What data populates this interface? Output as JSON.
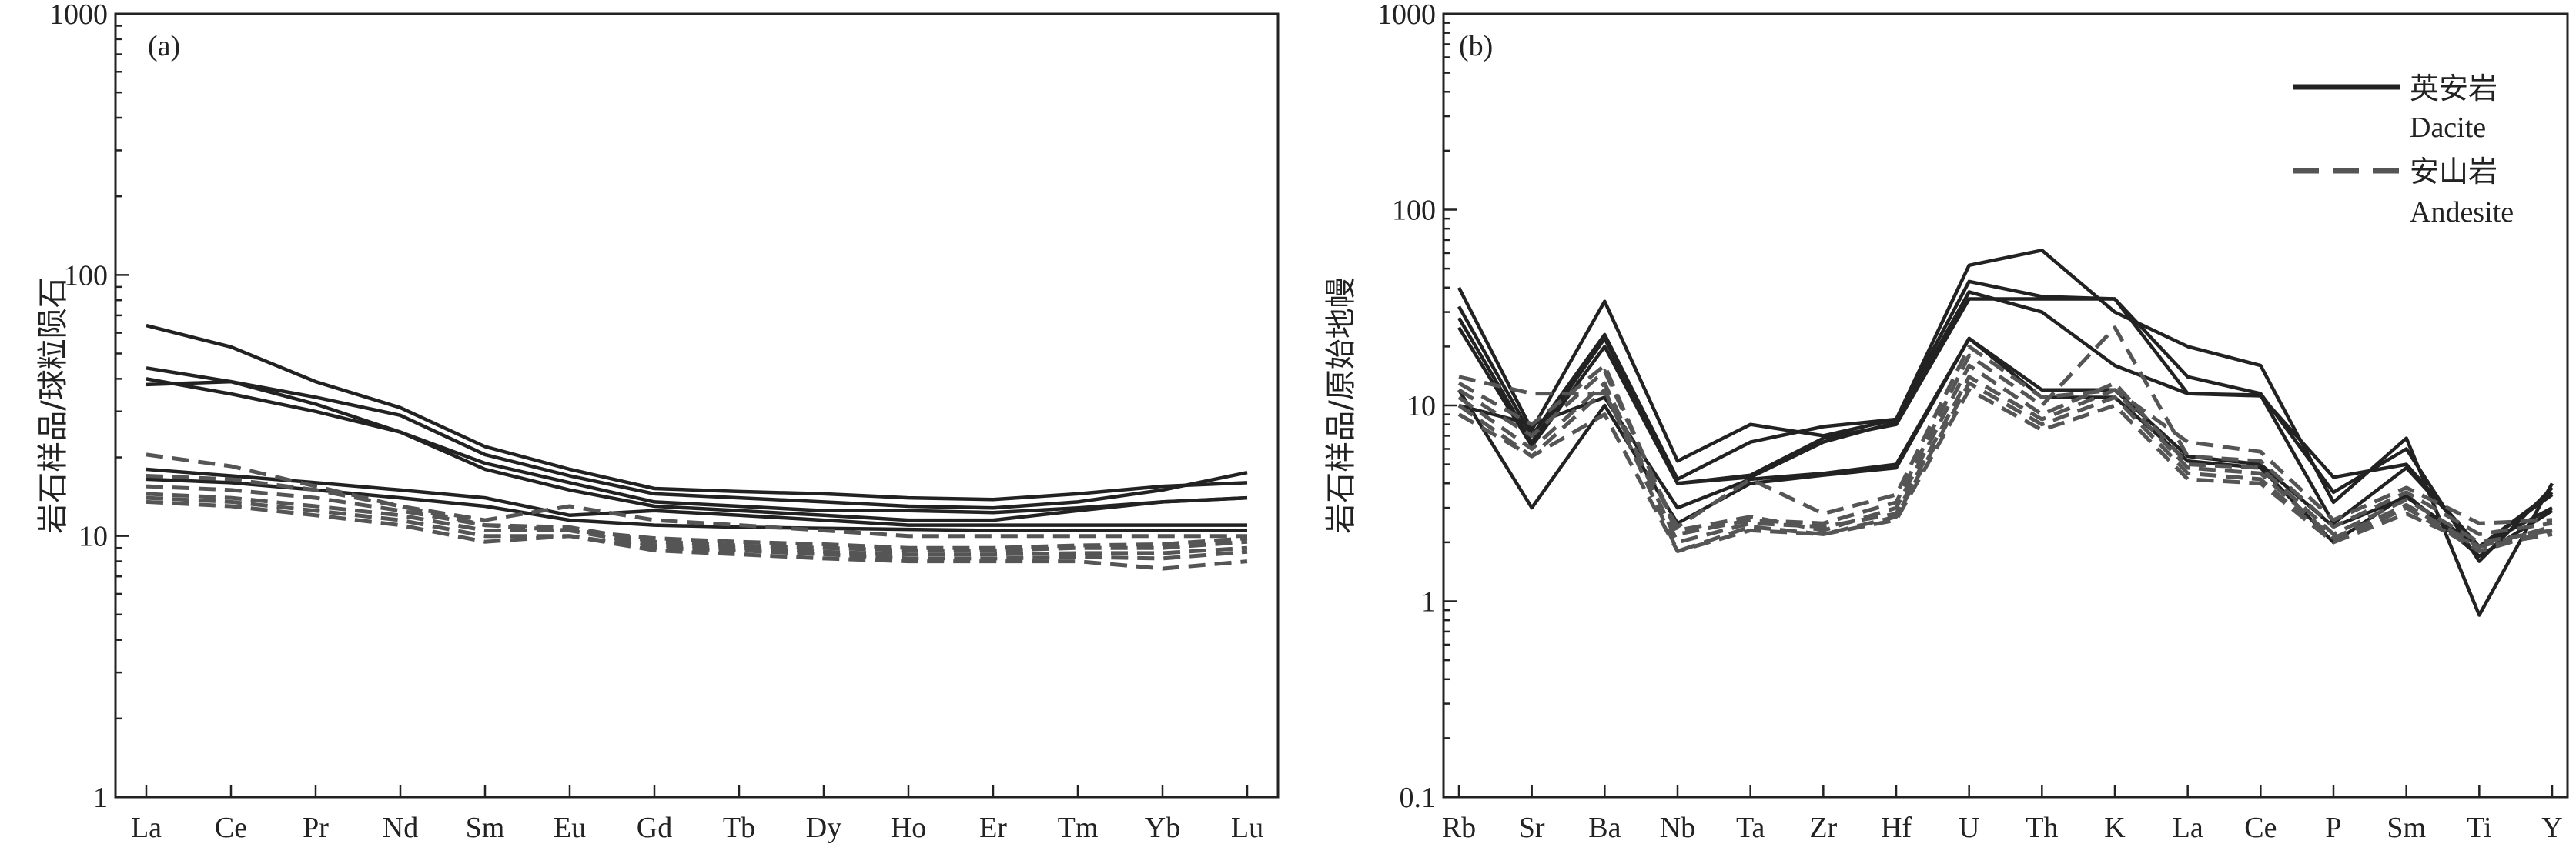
{
  "colors": {
    "dacite": "#222222",
    "andesite": "#555555"
  },
  "chart_data": [
    {
      "type": "line",
      "panel_label": "(a)",
      "ylabel": "岩石样品/球粒陨石",
      "y_scale": "log",
      "ylim": [
        1,
        1000
      ],
      "y_ticks": [
        "1",
        "10",
        "100",
        "1000"
      ],
      "categories": [
        "La",
        "Ce",
        "Pr",
        "Nd",
        "Sm",
        "Eu",
        "Gd",
        "Tb",
        "Dy",
        "Ho",
        "Er",
        "Tm",
        "Yb",
        "Lu"
      ],
      "series": [
        {
          "group": "dacite",
          "values": [
            64,
            53,
            39,
            31,
            22,
            18,
            15.2,
            14.8,
            14.5,
            14,
            13.8,
            14.5,
            15.5,
            16
          ]
        },
        {
          "group": "dacite",
          "values": [
            44,
            39,
            34,
            29,
            20.5,
            17,
            14.5,
            14,
            13.5,
            13,
            12.8,
            13.5,
            15,
            17.5
          ]
        },
        {
          "group": "dacite",
          "values": [
            40,
            35,
            30,
            25,
            19,
            16,
            13.5,
            13,
            12.5,
            12.5,
            12.3,
            12.8,
            13.5,
            14
          ]
        },
        {
          "group": "dacite",
          "values": [
            38,
            39,
            32,
            25,
            18,
            15,
            13,
            12.5,
            12,
            11.5,
            11.5,
            12.5,
            13.5,
            14
          ]
        },
        {
          "group": "dacite",
          "values": [
            18,
            17,
            16,
            15,
            14,
            12,
            12.5,
            12,
            11.5,
            11,
            11,
            11,
            11,
            11
          ]
        },
        {
          "group": "dacite",
          "values": [
            16.5,
            16,
            15,
            14,
            13,
            11.5,
            11,
            10.8,
            10.7,
            10.6,
            10.5,
            10.5,
            10.5,
            10.5
          ]
        },
        {
          "group": "andesite",
          "values": [
            20.5,
            18.5,
            15.5,
            13,
            11.5,
            13,
            11.5,
            11,
            10.5,
            10,
            10,
            10,
            10,
            10
          ]
        },
        {
          "group": "andesite",
          "values": [
            17,
            16.5,
            15,
            13,
            11,
            10.5,
            9.8,
            9.5,
            9.3,
            9,
            9,
            9.2,
            9.3,
            9.8
          ]
        },
        {
          "group": "andesite",
          "values": [
            15.5,
            15,
            14,
            12.5,
            11,
            10.8,
            9.5,
            9.2,
            9,
            8.8,
            8.8,
            9,
            9,
            9.5
          ]
        },
        {
          "group": "andesite",
          "values": [
            14.5,
            14,
            13,
            12,
            10.5,
            10.5,
            9.2,
            9,
            8.7,
            8.5,
            8.5,
            8.6,
            8.6,
            9
          ]
        },
        {
          "group": "andesite",
          "values": [
            14,
            13.5,
            12.5,
            11.5,
            10,
            10,
            9,
            8.8,
            8.5,
            8.2,
            8.2,
            8.3,
            8.2,
            8.7
          ]
        },
        {
          "group": "andesite",
          "values": [
            13.5,
            13,
            12,
            11,
            9.5,
            10,
            8.8,
            8.5,
            8.2,
            8,
            8,
            8,
            7.5,
            8
          ]
        }
      ]
    },
    {
      "type": "line",
      "panel_label": "(b)",
      "ylabel": "岩石样品/原始地幔",
      "y_scale": "log",
      "ylim": [
        0.1,
        1000
      ],
      "y_ticks": [
        "0.1",
        "1",
        "10",
        "100",
        "1000"
      ],
      "categories": [
        "Rb",
        "Sr",
        "Ba",
        "Nb",
        "Ta",
        "Zr",
        "Hf",
        "U",
        "Th",
        "K",
        "La",
        "Ce",
        "P",
        "Sm",
        "Ti",
        "Y"
      ],
      "legend": [
        {
          "group": "dacite",
          "label_cn": "英安岩",
          "label_en": "Dacite"
        },
        {
          "group": "andesite",
          "label_cn": "安山岩",
          "label_en": "Andesite"
        }
      ],
      "series": [
        {
          "group": "dacite",
          "values": [
            40,
            7.5,
            34,
            5.2,
            8,
            7,
            8.5,
            52,
            62,
            30,
            20,
            16,
            3.2,
            6.8,
            0.85,
            4
          ]
        },
        {
          "group": "dacite",
          "values": [
            32,
            7,
            23,
            4.2,
            6.5,
            7.8,
            8.5,
            43,
            36,
            35,
            14,
            11.5,
            3.6,
            6,
            1.6,
            3.8
          ]
        },
        {
          "group": "dacite",
          "values": [
            28,
            6.5,
            22,
            4,
            4.3,
            6.5,
            8.2,
            38,
            30,
            16,
            11.5,
            11.2,
            4.3,
            5,
            1.9,
            3.6
          ]
        },
        {
          "group": "dacite",
          "values": [
            25,
            6.2,
            20,
            4,
            4.4,
            6.8,
            8,
            35,
            35,
            35,
            11.5,
            11.3,
            2.5,
            4.8,
            1.9,
            3.5
          ]
        },
        {
          "group": "dacite",
          "values": [
            12,
            3,
            10,
            2.5,
            4,
            4.4,
            4.8,
            22,
            12,
            12,
            5.5,
            5,
            2.4,
            3.4,
            1.9,
            3
          ]
        },
        {
          "group": "dacite",
          "values": [
            10,
            8,
            11,
            3,
            4.2,
            4.5,
            5,
            22,
            11,
            11,
            5.2,
            4.8,
            2,
            3.5,
            1.7,
            2.9
          ]
        },
        {
          "group": "andesite",
          "values": [
            14,
            11.5,
            11.5,
            2.4,
            4.2,
            2.8,
            3.5,
            20,
            11,
            12,
            6.5,
            5.8,
            2.6,
            3.8,
            2.5,
            2.6
          ]
        },
        {
          "group": "andesite",
          "values": [
            13,
            8,
            16,
            2.2,
            2.6,
            2.5,
            3.2,
            18,
            10,
            25,
            5.5,
            5.2,
            2.4,
            3.6,
            2.2,
            2.5
          ]
        },
        {
          "group": "andesite",
          "values": [
            12,
            7,
            15,
            2.3,
            2.7,
            2.3,
            3,
            16,
            9,
            13,
            5,
            4.8,
            2.2,
            3.3,
            2,
            2.3
          ]
        },
        {
          "group": "andesite",
          "values": [
            11,
            6,
            13,
            2,
            2.5,
            2.4,
            2.8,
            14,
            8.5,
            12,
            4.8,
            4.5,
            2.1,
            3.1,
            1.9,
            2.2
          ]
        },
        {
          "group": "andesite",
          "values": [
            10,
            5.5,
            12,
            1.8,
            2.4,
            2.2,
            2.7,
            13,
            8,
            11,
            4.5,
            4.2,
            2,
            3,
            1.8,
            2.3
          ]
        },
        {
          "group": "andesite",
          "values": [
            9,
            5.5,
            9,
            1.8,
            2.3,
            2.2,
            2.6,
            12,
            7.5,
            10,
            4.2,
            4,
            2,
            2.8,
            1.9,
            2.4
          ]
        }
      ]
    }
  ]
}
